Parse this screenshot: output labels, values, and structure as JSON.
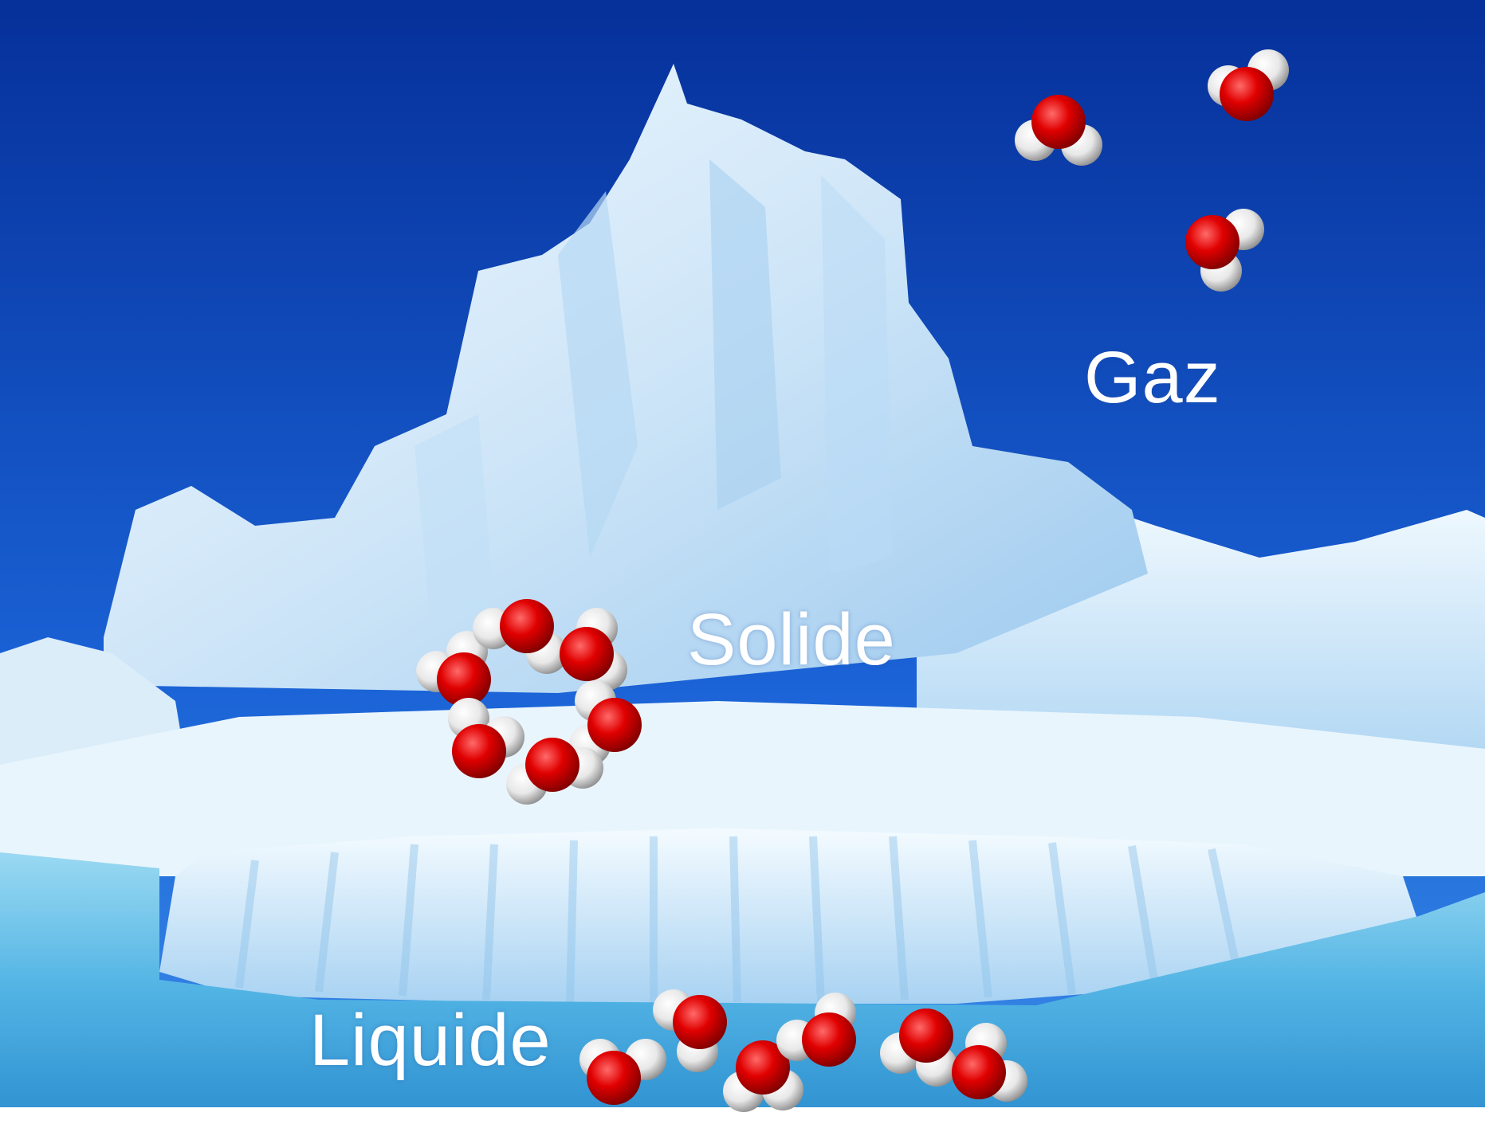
{
  "labels": {
    "gas": "Gaz",
    "solid": "Solide",
    "liquid": "Liquide"
  },
  "colors": {
    "sky_top": "#06309a",
    "sky_bottom": "#2c7fe6",
    "ice": "#e6f3fc",
    "ice_shadow": "#8fc3ea",
    "water": "#6fc6ea",
    "oxygen": "#e00000",
    "hydrogen": "#f4f4f4"
  },
  "molecule_groups": {
    "gas": {
      "count": 3,
      "arrangement": "scattered"
    },
    "solid": {
      "count": 6,
      "arrangement": "hexagonal ring"
    },
    "liquid": {
      "count": 6,
      "arrangement": "loose cluster"
    }
  }
}
